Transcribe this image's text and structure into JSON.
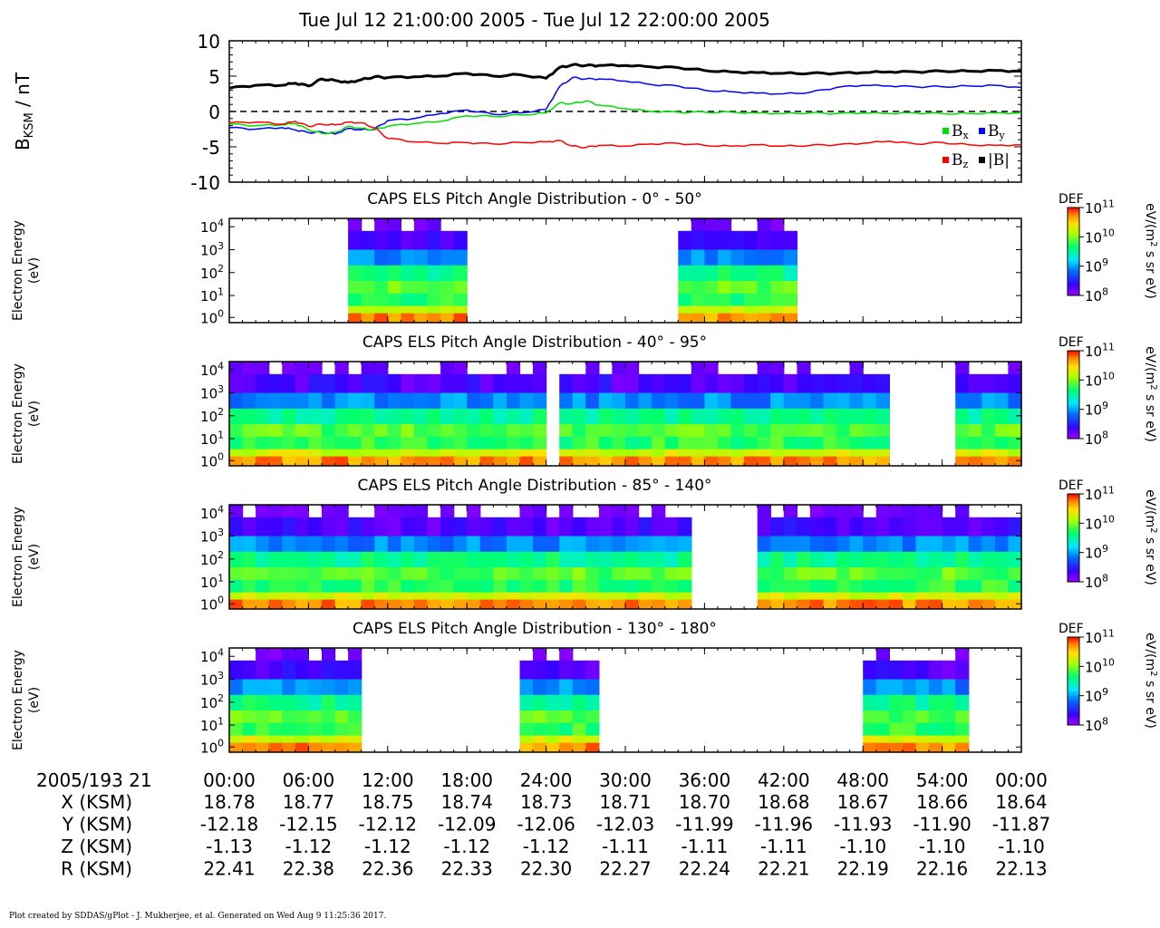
{
  "title": "Tue Jul 12 21:00:00 2005 - Tue Jul 12 22:00:00 2005",
  "footer": "Plot created by SDDAS/gPlot - J. Mukherjee, et al.  Generated on Wed Aug 9 11:25:36 2017.",
  "colors": {
    "bx": "#00dd00",
    "by": "#0000ff",
    "bz": "#ff0000",
    "bmag": "#000000"
  },
  "chart_data": [
    {
      "type": "line",
      "ylabel_main": "B",
      "ylabel_sub": "KSM",
      "ylabel_unit": " / nT",
      "ylim": [
        -10,
        10
      ],
      "yticks": [
        "10",
        "5",
        "0",
        "-5",
        "-10"
      ],
      "xlim_min": [
        0,
        60
      ],
      "legend": [
        {
          "key": "bx",
          "main": "B",
          "sub": "x"
        },
        {
          "key": "by",
          "main": "B",
          "sub": "y"
        },
        {
          "key": "bz",
          "main": "B",
          "sub": "z"
        },
        {
          "key": "bmag",
          "main": "|B|",
          "sub": ""
        }
      ],
      "x": [
        0,
        2,
        4,
        5,
        6,
        7,
        8,
        9,
        10,
        11,
        12,
        14,
        16,
        18,
        20,
        22,
        24,
        25,
        26,
        27,
        28,
        30,
        32,
        34,
        36,
        38,
        40,
        42,
        44,
        46,
        48,
        50,
        52,
        54,
        56,
        58,
        60
      ],
      "series": [
        {
          "key": "bmag",
          "values": [
            3.3,
            3.7,
            3.7,
            4.0,
            3.6,
            4.6,
            4.4,
            4.1,
            4.5,
            4.9,
            4.8,
            4.9,
            5.0,
            5.4,
            5.0,
            5.2,
            4.7,
            6.2,
            6.6,
            6.5,
            6.5,
            6.5,
            6.3,
            6.2,
            5.8,
            5.6,
            5.5,
            5.4,
            5.4,
            5.4,
            5.5,
            5.6,
            5.6,
            5.7,
            5.7,
            5.8,
            5.7
          ]
        },
        {
          "key": "by",
          "values": [
            -2.3,
            -2.5,
            -2.3,
            -2.6,
            -3.0,
            -2.9,
            -3.2,
            -2.4,
            -2.6,
            -2.5,
            -1.3,
            -1.0,
            -0.3,
            0.2,
            -0.4,
            -0.2,
            0.3,
            3.5,
            4.8,
            4.6,
            4.6,
            4.3,
            3.8,
            3.6,
            3.0,
            2.8,
            2.6,
            2.5,
            2.7,
            3.4,
            3.7,
            3.6,
            3.5,
            3.5,
            3.6,
            3.7,
            3.4
          ]
        },
        {
          "key": "bx",
          "values": [
            -1.8,
            -2.0,
            -1.9,
            -1.7,
            -2.6,
            -3.1,
            -3.0,
            -2.1,
            -2.4,
            -2.6,
            -2.1,
            -1.7,
            -1.4,
            -0.6,
            -0.7,
            -0.5,
            -0.2,
            1.2,
            1.1,
            1.5,
            0.9,
            0.4,
            0.0,
            -0.1,
            -0.1,
            -0.1,
            -0.2,
            -0.3,
            -0.2,
            -0.3,
            -0.2,
            -0.3,
            -0.2,
            -0.3,
            -0.3,
            -0.2,
            -0.2
          ]
        },
        {
          "key": "bz",
          "values": [
            -1.6,
            -1.5,
            -1.8,
            -1.4,
            -2.1,
            -1.8,
            -1.9,
            -1.5,
            -1.6,
            -2.3,
            -3.8,
            -4.3,
            -4.5,
            -4.4,
            -4.6,
            -4.4,
            -4.3,
            -4.1,
            -4.9,
            -5.1,
            -4.8,
            -4.9,
            -4.6,
            -4.5,
            -4.8,
            -4.9,
            -4.7,
            -4.9,
            -4.8,
            -4.7,
            -4.5,
            -4.2,
            -4.6,
            -4.4,
            -4.7,
            -4.8,
            -4.7
          ]
        }
      ]
    },
    {
      "type": "heatmap",
      "title": "CAPS ELS Pitch Angle Distribution - 0° - 50°",
      "gaps_min": [
        [
          0,
          5.8
        ],
        [
          6.1,
          8.9
        ],
        [
          17.6,
          34.4
        ],
        [
          42.8,
          60
        ]
      ],
      "xlim_min": [
        0,
        60
      ]
    },
    {
      "type": "heatmap",
      "title": "CAPS ELS Pitch Angle Distribution - 40° - 95°",
      "gaps_min": [
        [
          24.2,
          25.0
        ],
        [
          49.7,
          55.0
        ]
      ],
      "xlim_min": [
        0,
        60
      ]
    },
    {
      "type": "heatmap",
      "title": "CAPS ELS Pitch Angle Distribution - 85° - 140°",
      "gaps_min": [
        [
          35.5,
          39.6
        ]
      ],
      "xlim_min": [
        0,
        60
      ]
    },
    {
      "type": "heatmap",
      "title": "CAPS ELS Pitch Angle Distribution - 130° - 180°",
      "gaps_min": [
        [
          10.2,
          10.8
        ],
        [
          11.2,
          22.4
        ],
        [
          27.7,
          47.5
        ],
        [
          55.8,
          60
        ]
      ],
      "xlim_min": [
        0,
        60
      ]
    }
  ],
  "spectrogram": {
    "ylabel_line1": "Electron Energy",
    "ylabel_line2": "(eV)",
    "yticks": [
      {
        "base": "10",
        "exp": "4"
      },
      {
        "base": "10",
        "exp": "3"
      },
      {
        "base": "10",
        "exp": "2"
      },
      {
        "base": "10",
        "exp": "1"
      },
      {
        "base": "10",
        "exp": "0"
      }
    ],
    "colorbar_label": "DEF",
    "colorbar_ticks": [
      {
        "base": "10",
        "exp": "11"
      },
      {
        "base": "10",
        "exp": "10"
      },
      {
        "base": "10",
        "exp": "9"
      },
      {
        "base": "10",
        "exp": "8"
      }
    ],
    "colorbar_unit_pre": "eV/(m",
    "colorbar_unit_exp": "2",
    "colorbar_unit_post": " s sr eV)"
  },
  "xaxis": {
    "date_label": "2005/193 21",
    "ticks": [
      "00:00",
      "06:00",
      "12:00",
      "18:00",
      "24:00",
      "30:00",
      "36:00",
      "42:00",
      "48:00",
      "54:00",
      "00:00"
    ],
    "rows": [
      {
        "label": "X (KSM)",
        "values": [
          "18.78",
          "18.77",
          "18.75",
          "18.74",
          "18.73",
          "18.71",
          "18.70",
          "18.68",
          "18.67",
          "18.66",
          "18.64"
        ]
      },
      {
        "label": "Y (KSM)",
        "values": [
          "-12.18",
          "-12.15",
          "-12.12",
          "-12.09",
          "-12.06",
          "-12.03",
          "-11.99",
          "-11.96",
          "-11.93",
          "-11.90",
          "-11.87"
        ]
      },
      {
        "label": "Z (KSM)",
        "values": [
          "-1.13",
          "-1.12",
          "-1.12",
          "-1.12",
          "-1.12",
          "-1.11",
          "-1.11",
          "-1.11",
          "-1.10",
          "-1.10",
          "-1.10"
        ]
      },
      {
        "label": "R (KSM)",
        "values": [
          "22.41",
          "22.38",
          "22.36",
          "22.33",
          "22.30",
          "22.27",
          "22.24",
          "22.21",
          "22.19",
          "22.16",
          "22.13"
        ]
      }
    ]
  }
}
